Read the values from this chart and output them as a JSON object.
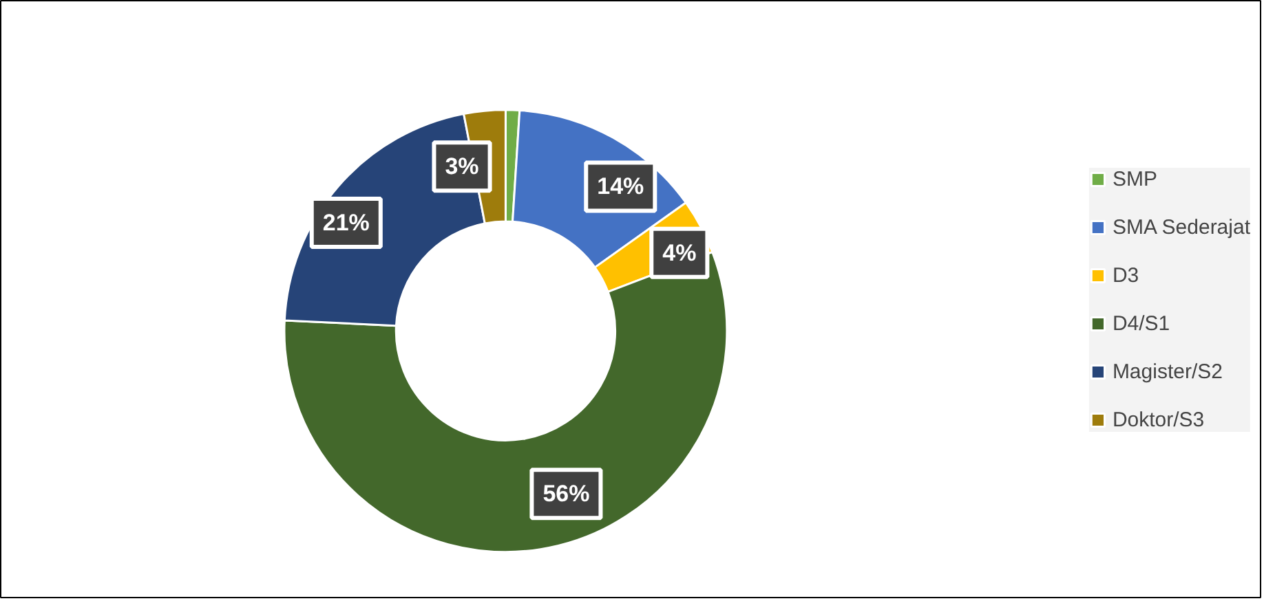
{
  "chart_data": {
    "type": "donut",
    "categories": [
      "SMP",
      "SMA Sederajat",
      "D3",
      "D4/S1",
      "Magister/S2",
      "Doktor/S3"
    ],
    "values": [
      1,
      14,
      4,
      56,
      21,
      3
    ],
    "colors": [
      "#70ad47",
      "#4472c4",
      "#ffc000",
      "#43682b",
      "#264478",
      "#9e7c0c"
    ],
    "value_labels": [
      null,
      "14%",
      "4%",
      "56%",
      "21%",
      "3%"
    ],
    "legend": "right"
  }
}
